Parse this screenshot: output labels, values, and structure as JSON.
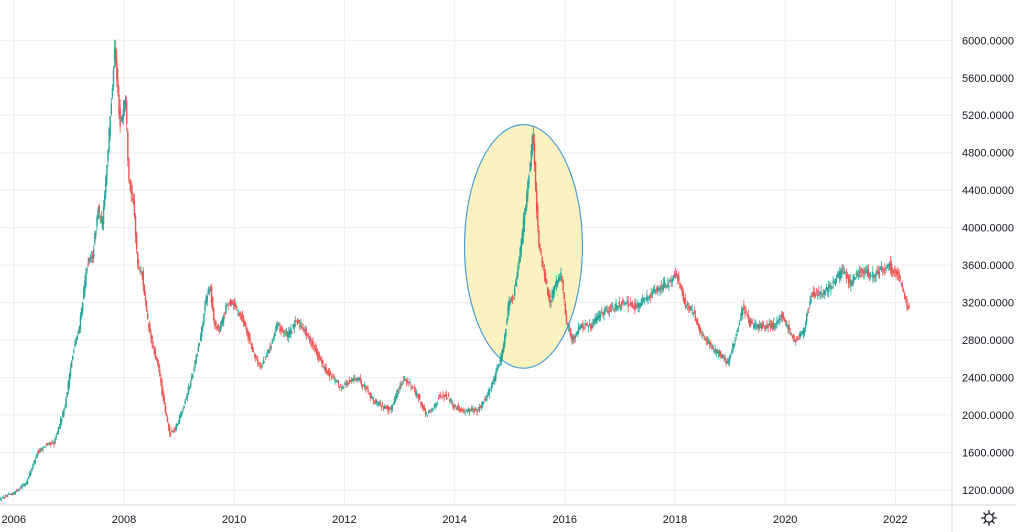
{
  "chart_data": {
    "type": "candlestick",
    "title": "",
    "xlabel": "",
    "ylabel": "",
    "xlim": [
      2005.75,
      2022.9
    ],
    "ylim": [
      1040,
      6430
    ],
    "x_ticks": [
      "2006",
      "2008",
      "2010",
      "2012",
      "2014",
      "2016",
      "2018",
      "2020",
      "2022"
    ],
    "y_ticks": [
      "1200.0000",
      "1600.0000",
      "2000.0000",
      "2400.0000",
      "2800.0000",
      "3200.0000",
      "3600.0000",
      "4000.0000",
      "4400.0000",
      "4800.0000",
      "5200.0000",
      "5600.0000",
      "6000.0000"
    ],
    "grid": true,
    "series": [
      {
        "up_color": "#26a69a",
        "down_color": "#ef5350",
        "points": [
          [
            2005.75,
            1100
          ],
          [
            2006.0,
            1160
          ],
          [
            2006.25,
            1280
          ],
          [
            2006.45,
            1600
          ],
          [
            2006.6,
            1680
          ],
          [
            2006.75,
            1700
          ],
          [
            2006.95,
            2100
          ],
          [
            2007.1,
            2700
          ],
          [
            2007.2,
            2900
          ],
          [
            2007.35,
            3600
          ],
          [
            2007.45,
            3700
          ],
          [
            2007.55,
            4200
          ],
          [
            2007.62,
            4000
          ],
          [
            2007.75,
            5000
          ],
          [
            2007.85,
            5900
          ],
          [
            2007.95,
            5100
          ],
          [
            2008.05,
            5400
          ],
          [
            2008.1,
            4600
          ],
          [
            2008.2,
            4200
          ],
          [
            2008.27,
            3600
          ],
          [
            2008.35,
            3500
          ],
          [
            2008.45,
            3000
          ],
          [
            2008.55,
            2700
          ],
          [
            2008.65,
            2500
          ],
          [
            2008.75,
            2100
          ],
          [
            2008.85,
            1800
          ],
          [
            2008.95,
            1850
          ],
          [
            2009.1,
            2100
          ],
          [
            2009.25,
            2400
          ],
          [
            2009.4,
            2800
          ],
          [
            2009.5,
            3200
          ],
          [
            2009.58,
            3400
          ],
          [
            2009.65,
            3000
          ],
          [
            2009.75,
            2900
          ],
          [
            2009.9,
            3200
          ],
          [
            2010.0,
            3200
          ],
          [
            2010.1,
            3100
          ],
          [
            2010.2,
            3000
          ],
          [
            2010.35,
            2700
          ],
          [
            2010.5,
            2500
          ],
          [
            2010.65,
            2700
          ],
          [
            2010.8,
            2950
          ],
          [
            2010.9,
            2900
          ],
          [
            2011.0,
            2850
          ],
          [
            2011.15,
            3000
          ],
          [
            2011.25,
            2950
          ],
          [
            2011.4,
            2800
          ],
          [
            2011.5,
            2700
          ],
          [
            2011.65,
            2500
          ],
          [
            2011.8,
            2400
          ],
          [
            2011.95,
            2300
          ],
          [
            2012.1,
            2350
          ],
          [
            2012.25,
            2400
          ],
          [
            2012.4,
            2300
          ],
          [
            2012.55,
            2150
          ],
          [
            2012.7,
            2100
          ],
          [
            2012.85,
            2050
          ],
          [
            2012.95,
            2200
          ],
          [
            2013.1,
            2400
          ],
          [
            2013.25,
            2300
          ],
          [
            2013.4,
            2150
          ],
          [
            2013.5,
            2000
          ],
          [
            2013.6,
            2050
          ],
          [
            2013.75,
            2200
          ],
          [
            2013.9,
            2200
          ],
          [
            2014.0,
            2100
          ],
          [
            2014.15,
            2050
          ],
          [
            2014.3,
            2050
          ],
          [
            2014.45,
            2050
          ],
          [
            2014.6,
            2200
          ],
          [
            2014.75,
            2400
          ],
          [
            2014.9,
            2700
          ],
          [
            2015.0,
            3200
          ],
          [
            2015.1,
            3300
          ],
          [
            2015.2,
            3700
          ],
          [
            2015.3,
            4200
          ],
          [
            2015.38,
            4600
          ],
          [
            2015.44,
            5050
          ],
          [
            2015.5,
            4300
          ],
          [
            2015.55,
            3800
          ],
          [
            2015.65,
            3500
          ],
          [
            2015.75,
            3200
          ],
          [
            2015.85,
            3400
          ],
          [
            2015.95,
            3500
          ],
          [
            2016.05,
            3000
          ],
          [
            2016.15,
            2800
          ],
          [
            2016.3,
            2950
          ],
          [
            2016.5,
            2950
          ],
          [
            2016.7,
            3100
          ],
          [
            2016.9,
            3150
          ],
          [
            2017.1,
            3200
          ],
          [
            2017.3,
            3150
          ],
          [
            2017.5,
            3250
          ],
          [
            2017.7,
            3350
          ],
          [
            2017.9,
            3400
          ],
          [
            2018.05,
            3500
          ],
          [
            2018.2,
            3200
          ],
          [
            2018.35,
            3100
          ],
          [
            2018.5,
            2850
          ],
          [
            2018.7,
            2700
          ],
          [
            2018.85,
            2650
          ],
          [
            2018.98,
            2550
          ],
          [
            2019.1,
            2800
          ],
          [
            2019.25,
            3150
          ],
          [
            2019.4,
            2950
          ],
          [
            2019.6,
            2950
          ],
          [
            2019.8,
            2950
          ],
          [
            2019.95,
            3050
          ],
          [
            2020.05,
            2950
          ],
          [
            2020.2,
            2800
          ],
          [
            2020.35,
            2900
          ],
          [
            2020.5,
            3300
          ],
          [
            2020.7,
            3300
          ],
          [
            2020.9,
            3400
          ],
          [
            2021.05,
            3550
          ],
          [
            2021.2,
            3400
          ],
          [
            2021.4,
            3550
          ],
          [
            2021.6,
            3500
          ],
          [
            2021.75,
            3550
          ],
          [
            2021.9,
            3600
          ],
          [
            2022.05,
            3500
          ],
          [
            2022.15,
            3350
          ],
          [
            2022.25,
            3150
          ]
        ]
      }
    ],
    "annotations": [
      {
        "type": "ellipse",
        "center": [
          2015.25,
          3800
        ],
        "x_radius": 1.07,
        "y_radius": 1300,
        "fill": "#fbf2bf",
        "stroke": "#4a9fd8"
      }
    ]
  },
  "ui": {
    "settings_icon": "gear-icon"
  },
  "colors": {
    "grid": "#ebeef3",
    "axis_line": "#d1d4dc",
    "text": "#131722"
  }
}
